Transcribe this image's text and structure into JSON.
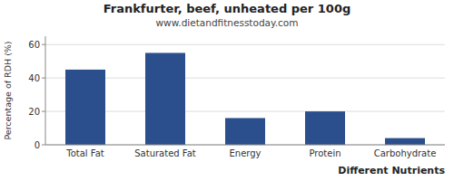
{
  "chart_data": {
    "type": "bar",
    "title": "Frankfurter, beef, unheated per 100g",
    "subtitle": "www.dietandfitnesstoday.com",
    "xlabel": "Different Nutrients",
    "ylabel": "Percentage of RDH (%)",
    "categories": [
      "Total Fat",
      "Saturated Fat",
      "Energy",
      "Protein",
      "Carbohydrate"
    ],
    "values": [
      45,
      55,
      16,
      20,
      4
    ],
    "color": "#2b4f8c",
    "ylim": [
      0,
      65
    ],
    "yticks": [
      0,
      20,
      40,
      60
    ],
    "grid": true
  }
}
